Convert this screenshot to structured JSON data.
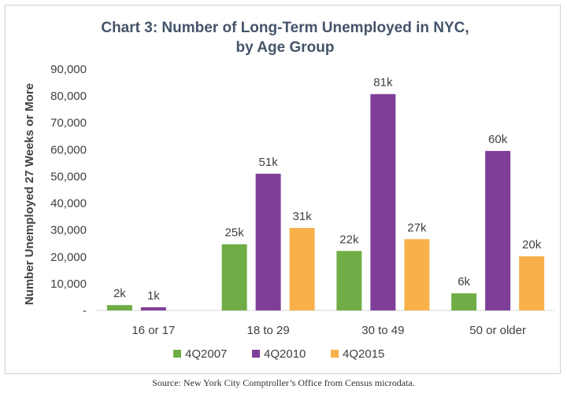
{
  "chart_data": {
    "type": "bar",
    "title_lines": [
      "Chart 3: Number of Long-Term Unemployed in NYC,",
      "by Age Group"
    ],
    "ylabel": "Number Unemployed 27 Weeks or More",
    "xlabel": "",
    "ylim": [
      0,
      90000
    ],
    "yticks": [
      0,
      10000,
      20000,
      30000,
      40000,
      50000,
      60000,
      70000,
      80000,
      90000
    ],
    "ytick_labels": [
      "-",
      "10,000",
      "20,000",
      "30,000",
      "40,000",
      "50,000",
      "60,000",
      "70,000",
      "80,000",
      "90,000"
    ],
    "categories": [
      "16 or 17",
      "18 to 29",
      "30 to 49",
      "50 or older"
    ],
    "series": [
      {
        "name": "4Q2007",
        "color": "#70ad47",
        "values": [
          2000,
          24700,
          22200,
          6400
        ],
        "labels": [
          "2k",
          "25k",
          "22k",
          "6k"
        ]
      },
      {
        "name": "4Q2010",
        "color": "#7f3f98",
        "values": [
          1200,
          51000,
          80700,
          59500
        ],
        "labels": [
          "1k",
          "51k",
          "81k",
          "60k"
        ]
      },
      {
        "name": "4Q2015",
        "color": "#f8b14a",
        "values": [
          null,
          30800,
          26600,
          20200
        ],
        "labels": [
          "",
          "31k",
          "27k",
          "20k"
        ]
      }
    ],
    "grid": false,
    "legend_position": "bottom"
  },
  "source_note": "Source: New York City Comptroller’s Office from Census microdata."
}
